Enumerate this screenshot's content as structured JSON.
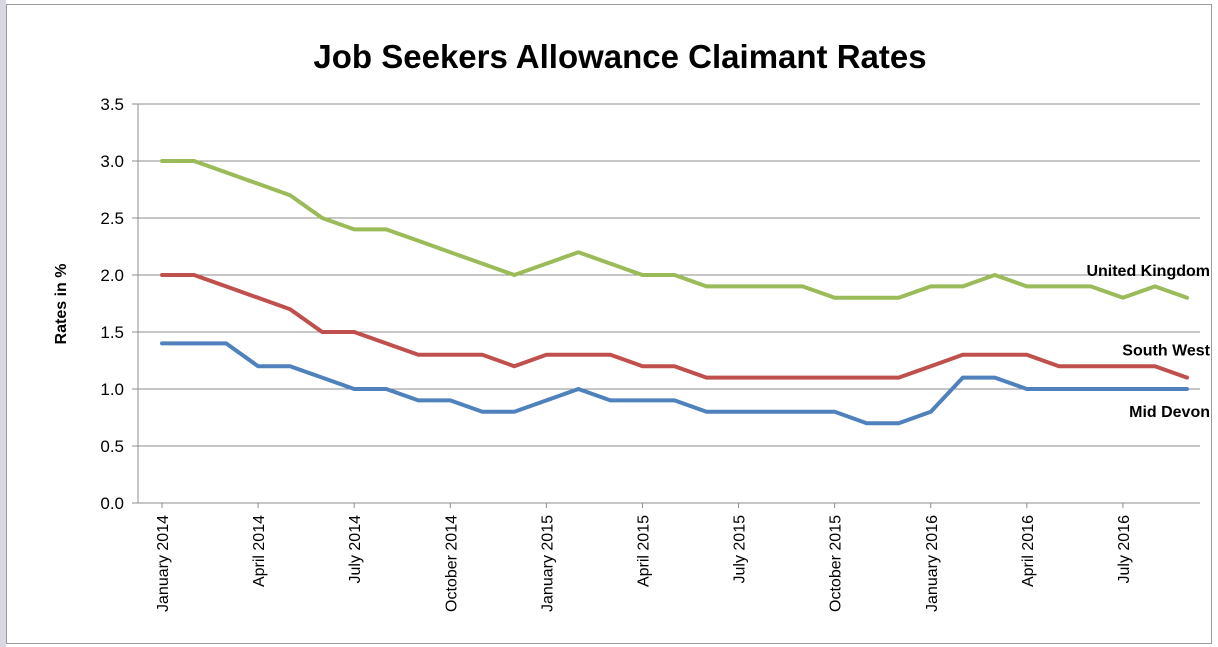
{
  "chart_data": {
    "type": "line",
    "title": "Job Seekers Allowance Claimant Rates",
    "xlabel": "",
    "ylabel": "Rates in %",
    "ylim": [
      0,
      3.5
    ],
    "yticks": [
      "0.0",
      "0.5",
      "1.0",
      "1.5",
      "2.0",
      "2.5",
      "3.0",
      "3.5"
    ],
    "grid": "horizontal",
    "legend": "labels at line ends (right)",
    "x": [
      "January 2014",
      "February 2014",
      "March 2014",
      "April 2014",
      "May 2014",
      "June 2014",
      "July 2014",
      "August 2014",
      "September 2014",
      "October 2014",
      "November 2014",
      "December 2014",
      "January 2015",
      "February 2015",
      "March 2015",
      "April 2015",
      "May 2015",
      "June 2015",
      "July 2015",
      "August 2015",
      "September 2015",
      "October 2015",
      "November 2015",
      "December 2015",
      "January 2016",
      "February 2016",
      "March 2016",
      "April 2016",
      "May 2016",
      "June 2016",
      "July 2016",
      "August 2016",
      "September 2016"
    ],
    "x_tick_labels": [
      {
        "index": 0,
        "label": "January 2014"
      },
      {
        "index": 3,
        "label": "April 2014"
      },
      {
        "index": 6,
        "label": "July 2014"
      },
      {
        "index": 9,
        "label": "October 2014"
      },
      {
        "index": 12,
        "label": "January 2015"
      },
      {
        "index": 15,
        "label": "April 2015"
      },
      {
        "index": 18,
        "label": "July 2015"
      },
      {
        "index": 21,
        "label": "October 2015"
      },
      {
        "index": 24,
        "label": "January 2016"
      },
      {
        "index": 27,
        "label": "April 2016"
      },
      {
        "index": 30,
        "label": "July 2016"
      }
    ],
    "series": [
      {
        "name": "United Kingdom",
        "color": "#9BBB59",
        "values": [
          3.0,
          3.0,
          2.9,
          2.8,
          2.7,
          2.5,
          2.4,
          2.4,
          2.3,
          2.2,
          2.1,
          2.0,
          2.1,
          2.2,
          2.1,
          2.0,
          2.0,
          1.9,
          1.9,
          1.9,
          1.9,
          1.8,
          1.8,
          1.8,
          1.9,
          1.9,
          2.0,
          1.9,
          1.9,
          1.9,
          1.8,
          1.9,
          1.8
        ]
      },
      {
        "name": "South West",
        "color": "#C0504D",
        "values": [
          2.0,
          2.0,
          1.9,
          1.8,
          1.7,
          1.5,
          1.5,
          1.4,
          1.3,
          1.3,
          1.3,
          1.2,
          1.3,
          1.3,
          1.3,
          1.2,
          1.2,
          1.1,
          1.1,
          1.1,
          1.1,
          1.1,
          1.1,
          1.1,
          1.2,
          1.3,
          1.3,
          1.3,
          1.2,
          1.2,
          1.2,
          1.2,
          1.1
        ]
      },
      {
        "name": "Mid Devon",
        "color": "#4F81BD",
        "values": [
          1.4,
          1.4,
          1.4,
          1.2,
          1.2,
          1.1,
          1.0,
          1.0,
          0.9,
          0.9,
          0.8,
          0.8,
          0.9,
          1.0,
          0.9,
          0.9,
          0.9,
          0.8,
          0.8,
          0.8,
          0.8,
          0.8,
          0.7,
          0.7,
          0.8,
          1.1,
          1.1,
          1.0,
          1.0,
          1.0,
          1.0,
          1.0,
          1.0
        ]
      }
    ]
  }
}
